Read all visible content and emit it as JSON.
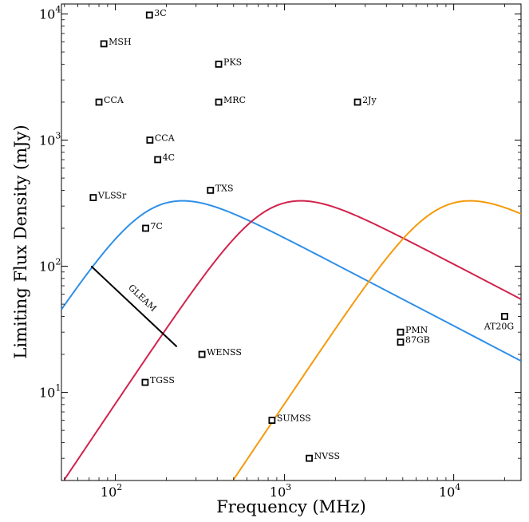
{
  "chart_data": {
    "type": "scatter",
    "title": "",
    "xlabel": "Frequency (MHz)",
    "ylabel": "Limiting Flux Density (mJy)",
    "xscale": "log",
    "yscale": "log",
    "xlim": [
      48,
      25000
    ],
    "ylim": [
      2,
      12000
    ],
    "grid": false,
    "x_ticks": [
      {
        "value": 100,
        "base": "10",
        "exp": "2"
      },
      {
        "value": 1000,
        "base": "10",
        "exp": "3"
      },
      {
        "value": 10000,
        "base": "10",
        "exp": "4"
      }
    ],
    "y_ticks": [
      {
        "value": 10,
        "base": "10",
        "exp": "1"
      },
      {
        "value": 100,
        "base": "10",
        "exp": "2"
      },
      {
        "value": 1000,
        "base": "10",
        "exp": "3"
      },
      {
        "value": 10000,
        "base": "10",
        "exp": "4"
      }
    ],
    "surveys": [
      {
        "label": "3C",
        "x": 159,
        "y": 9800,
        "pos": "right"
      },
      {
        "label": "MSH",
        "x": 85.5,
        "y": 5800,
        "pos": "right"
      },
      {
        "label": "PKS",
        "x": 408,
        "y": 4000,
        "pos": "right"
      },
      {
        "label": "CCA",
        "x": 80,
        "y": 2000,
        "pos": "right"
      },
      {
        "label": "MRC",
        "x": 408,
        "y": 2000,
        "pos": "right"
      },
      {
        "label": "2Jy",
        "x": 2700,
        "y": 2000,
        "pos": "right"
      },
      {
        "label": "CCA",
        "x": 160,
        "y": 1000,
        "pos": "right"
      },
      {
        "label": "4C",
        "x": 178,
        "y": 700,
        "pos": "right"
      },
      {
        "label": "TXS",
        "x": 365,
        "y": 400,
        "pos": "right"
      },
      {
        "label": "VLSSr",
        "x": 74,
        "y": 350,
        "pos": "right"
      },
      {
        "label": "7C",
        "x": 151,
        "y": 200,
        "pos": "right"
      },
      {
        "label": "WENSS",
        "x": 325,
        "y": 20,
        "pos": "right"
      },
      {
        "label": "TGSS",
        "x": 150,
        "y": 12,
        "pos": "right"
      },
      {
        "label": "SUMSS",
        "x": 843,
        "y": 6,
        "pos": "right"
      },
      {
        "label": "NVSS",
        "x": 1400,
        "y": 3,
        "pos": "right"
      },
      {
        "label": "PMN",
        "x": 4850,
        "y": 30,
        "pos": "right"
      },
      {
        "label": "87GB",
        "x": 4850,
        "y": 25,
        "pos": "right"
      },
      {
        "label": "AT20G",
        "x": 20000,
        "y": 40,
        "pos": "below"
      }
    ],
    "gleam_line": {
      "label": "GLEAM",
      "x": [
        72,
        231
      ],
      "y": [
        100,
        23
      ]
    },
    "curves": [
      {
        "color": "#2f8fe8",
        "peak_x": 250,
        "peak_y": 330
      },
      {
        "color": "#d2234c",
        "peak_x": 1250,
        "peak_y": 330
      },
      {
        "color": "#f59a0c",
        "peak_x": 12500,
        "peak_y": 330
      }
    ]
  }
}
